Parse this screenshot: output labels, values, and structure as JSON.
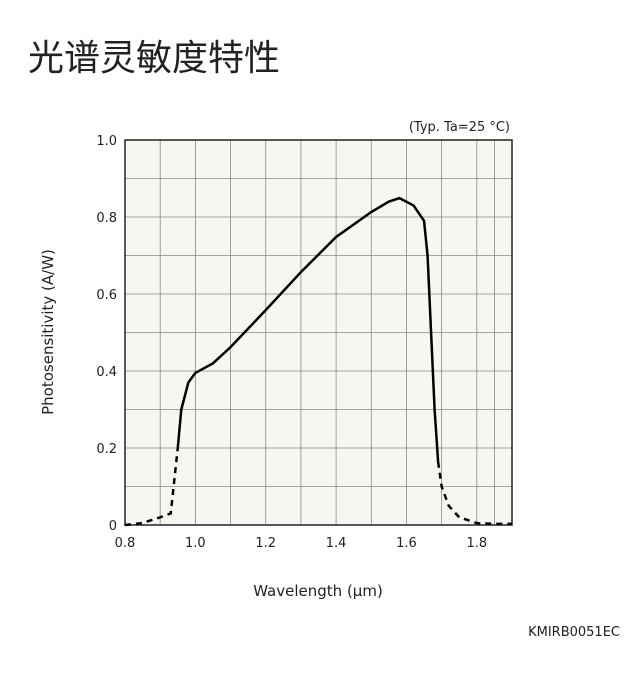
{
  "page_title": "光谱灵敏度特性",
  "chart_data": {
    "type": "line",
    "annotation": "(Typ. Ta=25 °C)",
    "x_label": "Wavelength (μm)",
    "y_label": "Photosensitivity (A/W)",
    "footer": "KMIRB0051EC",
    "x": [
      0.8,
      0.85,
      0.9,
      0.93,
      0.95,
      0.96,
      0.98,
      1.0,
      1.05,
      1.1,
      1.2,
      1.3,
      1.4,
      1.5,
      1.55,
      1.58,
      1.62,
      1.65,
      1.66,
      1.67,
      1.68,
      1.69,
      1.7,
      1.72,
      1.75,
      1.8,
      1.85,
      1.9
    ],
    "series": [
      {
        "color": "#000000",
        "dash": false,
        "values": [
          null,
          null,
          null,
          null,
          0.2,
          0.3,
          0.37,
          0.395,
          0.42,
          0.462,
          0.558,
          0.657,
          0.748,
          0.813,
          0.84,
          0.849,
          0.83,
          0.79,
          0.7,
          0.5,
          0.3,
          0.164,
          null,
          null,
          null,
          null,
          null,
          null
        ]
      },
      {
        "color": "#000000",
        "dash": true,
        "values": [
          0,
          0.005,
          0.02,
          0.03,
          0.2,
          null,
          null,
          null,
          null,
          null,
          null,
          null,
          null,
          null,
          null,
          null,
          null,
          null,
          null,
          null,
          null,
          0.164,
          0.1,
          0.05,
          0.02,
          0.005,
          0.003,
          0.003
        ]
      }
    ],
    "xlim": [
      0.8,
      1.9
    ],
    "ylim": [
      0,
      1
    ],
    "xticks": [
      0.8,
      {
        "value": 1,
        "label": "1.0"
      },
      1.2,
      1.4,
      1.6,
      1.8
    ],
    "yticks": [
      0,
      0.2,
      0.4,
      0.6,
      0.8,
      {
        "value": 1,
        "label": "1.0"
      }
    ],
    "grid": true,
    "background": "#f7f6f0"
  }
}
